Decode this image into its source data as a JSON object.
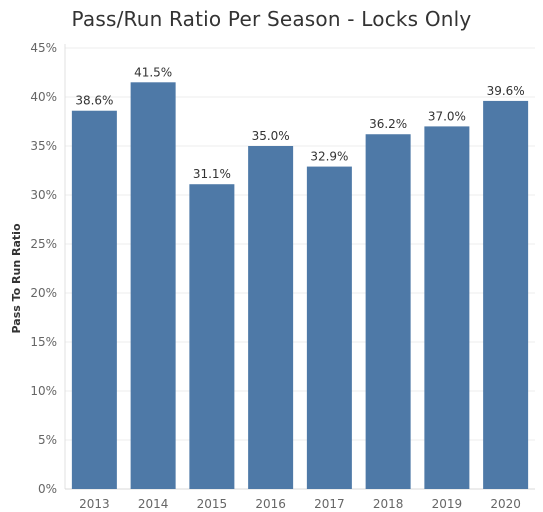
{
  "chart_data": {
    "type": "bar",
    "title": "Pass/Run Ratio Per Season - Locks Only",
    "xlabel": "",
    "ylabel": "Pass To Run Ratio",
    "categories": [
      "2013",
      "2014",
      "2015",
      "2016",
      "2017",
      "2018",
      "2019",
      "2020"
    ],
    "values": [
      38.6,
      41.5,
      31.1,
      35.0,
      32.9,
      36.2,
      37.0,
      39.6
    ],
    "value_labels": [
      "38.6%",
      "41.5%",
      "31.1%",
      "35.0%",
      "32.9%",
      "36.2%",
      "37.0%",
      "39.6%"
    ],
    "ylim": [
      0,
      45
    ],
    "y_ticks": [
      0,
      5,
      10,
      15,
      20,
      25,
      30,
      35,
      40,
      45
    ],
    "y_tick_labels": [
      "0%",
      "5%",
      "10%",
      "15%",
      "20%",
      "25%",
      "30%",
      "35%",
      "40%",
      "45%"
    ],
    "grid": true,
    "bar_color": "#4e79a7"
  }
}
